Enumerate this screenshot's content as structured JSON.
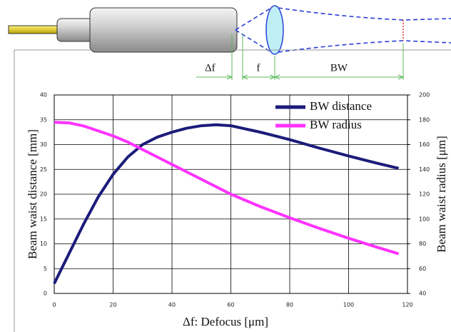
{
  "chart_data": {
    "type": "line",
    "xlabel": "Δf: Defocus  [μm]",
    "ylabel": "Beam waist distance [mm]",
    "y2label": "Beam waist radius [μm]",
    "annotations": [
      "Δf",
      "f",
      "BW"
    ],
    "x": [
      0,
      5,
      10,
      15,
      20,
      25,
      30,
      35,
      40,
      45,
      50,
      55,
      60,
      70,
      80,
      90,
      100,
      110,
      117
    ],
    "series": [
      {
        "name": "BW distance",
        "color": "#1c1c7a",
        "axis": "y",
        "values": [
          2,
          8,
          14,
          19.5,
          24,
          27.5,
          30,
          31.5,
          32.5,
          33.3,
          33.8,
          34,
          33.8,
          32.5,
          31,
          29.3,
          27.7,
          26.2,
          25.2
        ]
      },
      {
        "name": "BW radius",
        "color": "#ff33ff",
        "axis": "y2",
        "values": [
          178,
          177.5,
          175,
          171,
          167,
          162,
          156,
          150,
          144,
          138,
          132,
          126,
          120,
          110,
          101,
          92.5,
          84.5,
          77,
          72
        ]
      }
    ],
    "xlim": [
      0,
      120
    ],
    "xticks": [
      0,
      20,
      40,
      60,
      80,
      100,
      120
    ],
    "ylim": [
      0,
      40
    ],
    "yticks": [
      0,
      5,
      10,
      15,
      20,
      25,
      30,
      35,
      40
    ],
    "y2lim": [
      40,
      200
    ],
    "y2ticks": [
      40,
      60,
      80,
      100,
      120,
      140,
      160,
      180,
      200
    ],
    "grid": true,
    "legend": "upper right"
  }
}
